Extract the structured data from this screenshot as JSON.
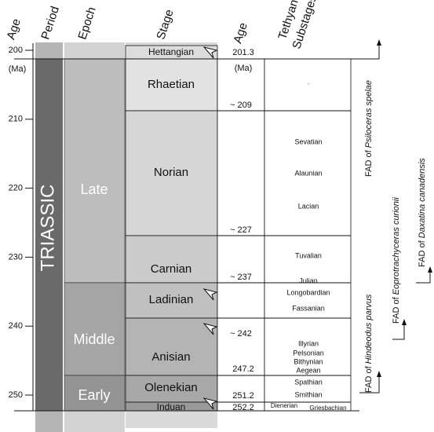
{
  "headers": [
    "Age",
    "Period",
    "Epoch",
    "Stage",
    "Age",
    [
      "Tethyan",
      "Substages"
    ]
  ],
  "axis": {
    "unit": "(Ma)",
    "ticks": [
      200,
      210,
      220,
      230,
      240,
      250
    ]
  },
  "age_unit": "(Ma)",
  "period": "TRIASSIC",
  "epochs": [
    "Late",
    "Middle",
    "Early"
  ],
  "stages": [
    {
      "name": "Hettangian",
      "age": "201.3"
    },
    {
      "name": "Rhaetian",
      "age": "~ 209"
    },
    {
      "name": "Norian",
      "age": "~ 227"
    },
    {
      "name": "Carnian",
      "age": "~ 237"
    },
    {
      "name": "Ladinian",
      "age": "~ 242"
    },
    {
      "name": "Anisian",
      "age": "247.2"
    },
    {
      "name": "Olenekian",
      "age": "251.2"
    },
    {
      "name": "Induan",
      "age": "252.2"
    }
  ],
  "substages": [
    "-",
    "Sevatian",
    "Alaunian",
    "Lacian",
    "Tuvalian",
    "Julian",
    "Longobardian",
    "Fassanian",
    "Illyrian",
    "Pelsonian",
    "Bithynian",
    "Aegean",
    "Spathian",
    "Smithian",
    "Dienerian",
    "Griesbachian"
  ],
  "fad_events": [
    {
      "prefix": "FAD of",
      "taxon": "Psiloceras spelae"
    },
    {
      "prefix": "FAD of",
      "taxon": "Hindeodus parvus"
    },
    {
      "prefix": "FAD of",
      "taxon": "Eoprotrachyceras curionii"
    },
    {
      "prefix": "FAD of",
      "taxon": "Daxatina canadensis"
    }
  ]
}
